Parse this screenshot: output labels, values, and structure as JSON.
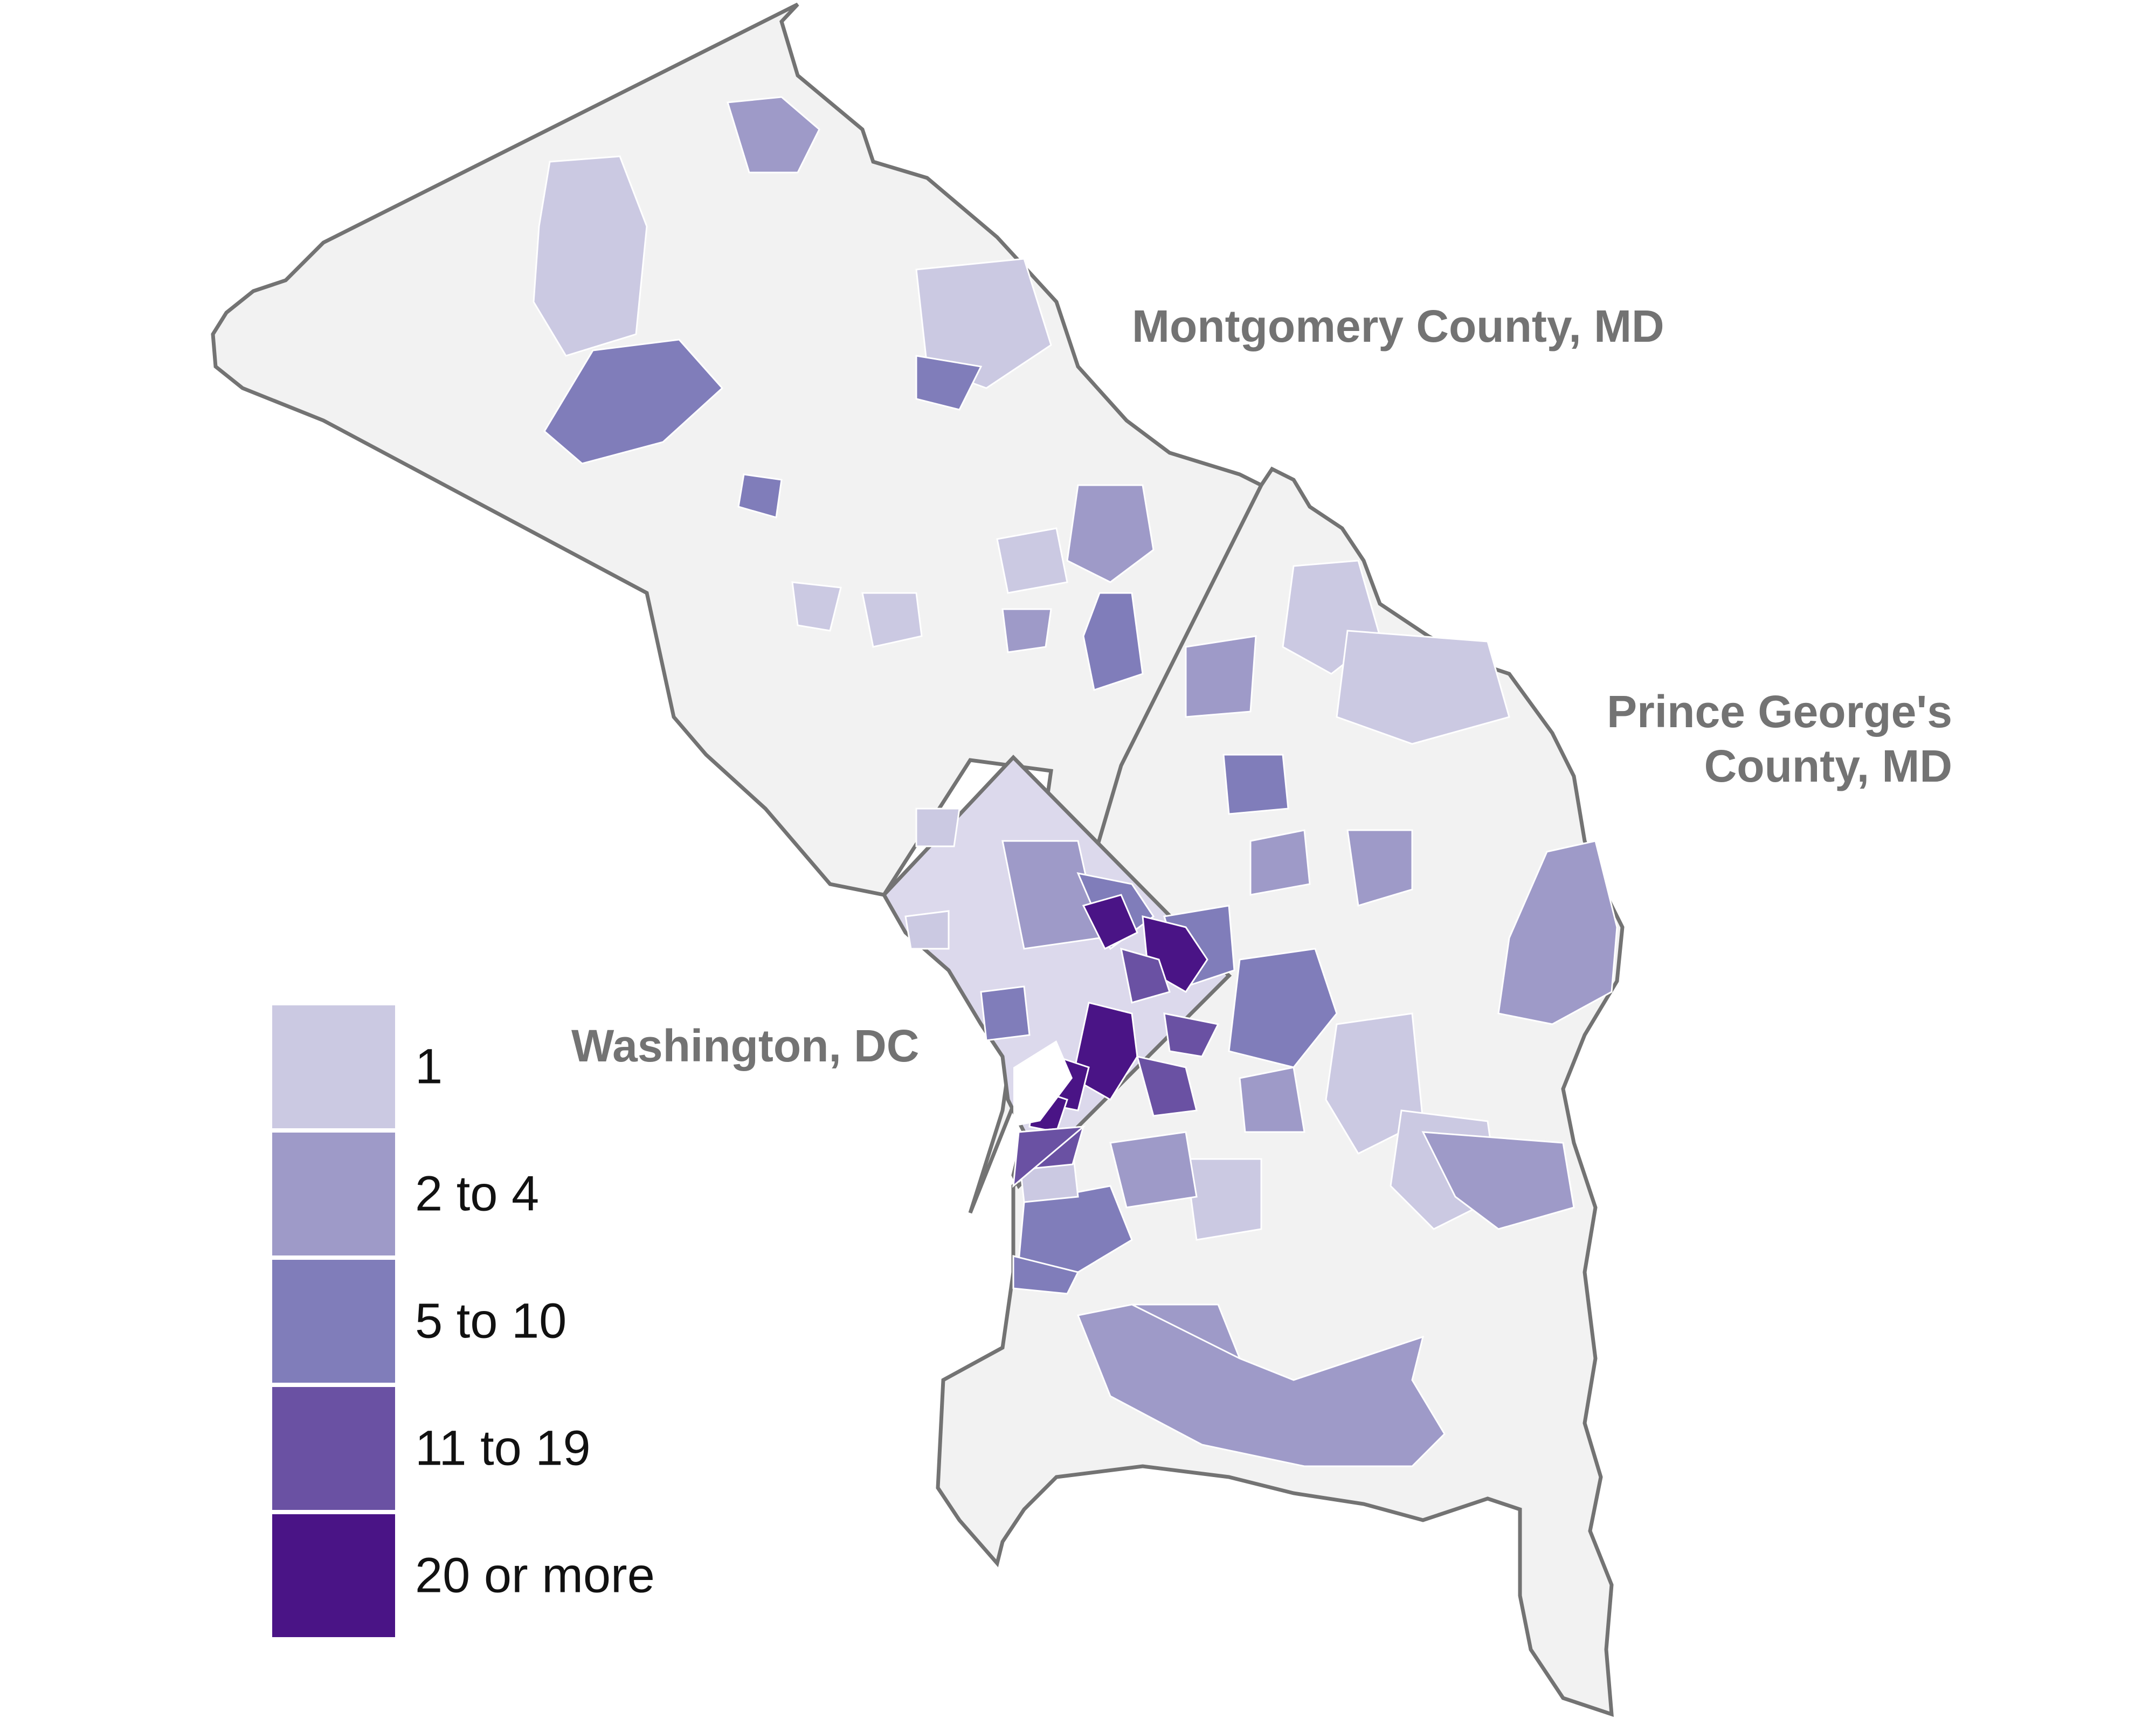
{
  "regions": {
    "montgomery": "Montgomery County, MD",
    "prince_georges_line1": "Prince George's",
    "prince_georges_line2": "County, MD",
    "dc": "Washington, DC"
  },
  "legend": [
    {
      "label": "1",
      "color": "#cbc9e2"
    },
    {
      "label": "2 to 4",
      "color": "#9e9ac8"
    },
    {
      "label": "5 to 10",
      "color": "#807dba"
    },
    {
      "label": "11 to 19",
      "color": "#6a51a3"
    },
    {
      "label": "20 or more",
      "color": "#4a1486"
    }
  ],
  "colors": {
    "no_data_fill": "#f2f2f2",
    "outline": "#737373",
    "tract_border": "#ffffff"
  }
}
